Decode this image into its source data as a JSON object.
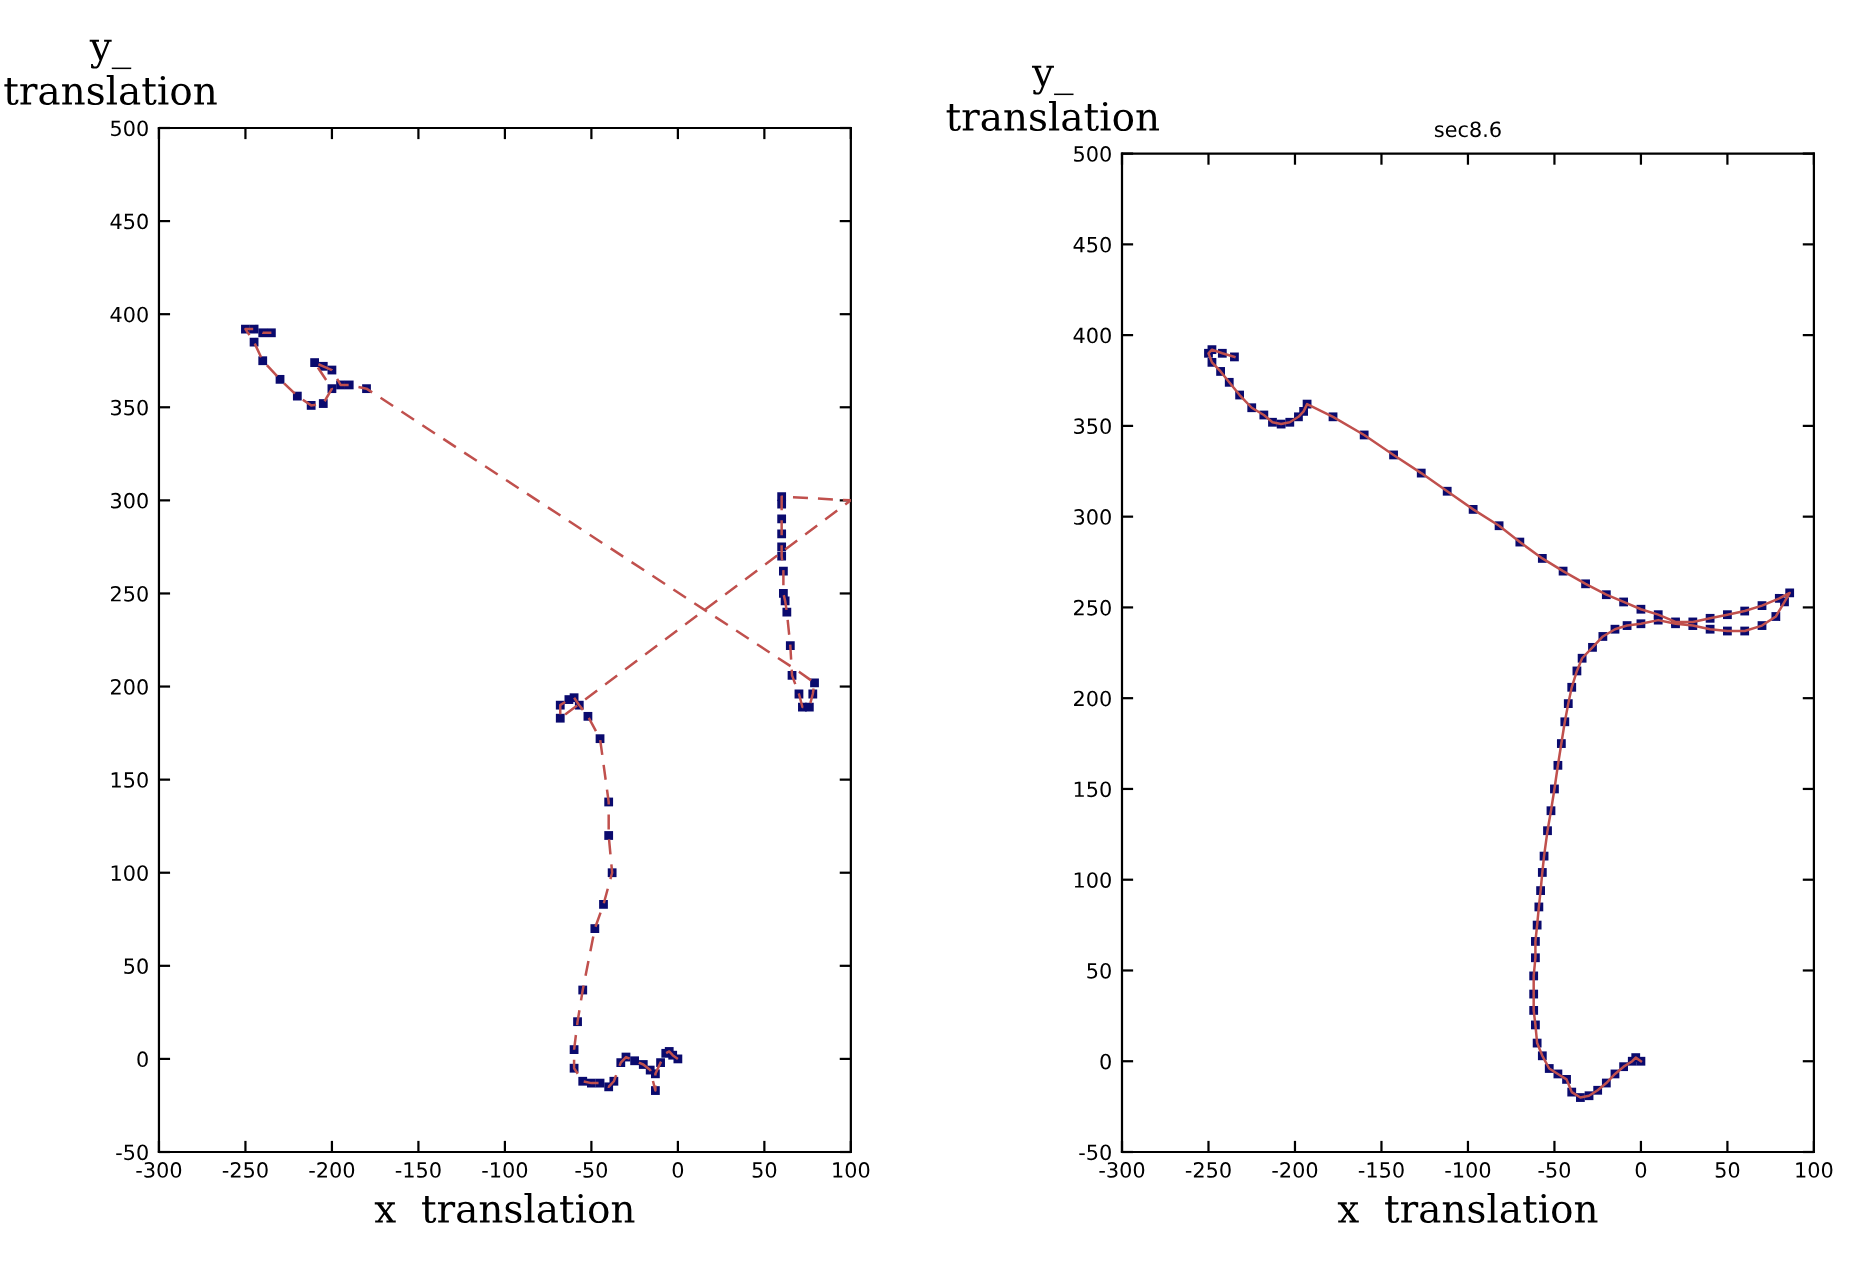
{
  "chart_data": [
    {
      "type": "line",
      "xlabel": "x  translation",
      "ylabel": "y_\ntranslation",
      "xlim": [
        -300,
        100
      ],
      "ylim": [
        -50,
        500
      ],
      "xticks": [
        -300,
        -250,
        -200,
        -150,
        -100,
        -50,
        0,
        50,
        100
      ],
      "yticks": [
        -50,
        0,
        50,
        100,
        150,
        200,
        250,
        300,
        350,
        400,
        450,
        500
      ],
      "grid": false,
      "x": [
        0,
        -3,
        -5,
        -7,
        -10,
        -13,
        -13,
        -16,
        -20,
        -25,
        -30,
        -33,
        -37,
        -40,
        -45,
        -50,
        -55,
        -60,
        -60,
        -58,
        -55,
        -48,
        -43,
        -38,
        -40,
        -40,
        -45,
        -52,
        -57,
        -60,
        -63,
        -68,
        -68,
        100,
        60,
        60,
        60,
        60,
        60,
        60,
        61,
        61,
        62,
        63,
        65,
        66,
        70,
        72,
        76,
        78,
        79,
        70,
        -180,
        -190,
        -195,
        -200,
        -205,
        -210,
        -200,
        -205,
        -212,
        -220,
        -230,
        -240,
        -245,
        -250,
        -245,
        -240,
        -235
      ],
      "series": [
        {
          "line_style": "dashed",
          "marker": "none",
          "color": "#c0504d",
          "values": [
            0,
            2,
            4,
            3,
            -2,
            -8,
            -17,
            -6,
            -3,
            -1,
            1,
            -2,
            -12,
            -15,
            -13,
            -13,
            -12,
            -5,
            5,
            20,
            37,
            70,
            83,
            100,
            120,
            138,
            172,
            184,
            190,
            194,
            193,
            190,
            183,
            300,
            302,
            298,
            290,
            282,
            275,
            270,
            262,
            250,
            246,
            240,
            222,
            206,
            196,
            189,
            189,
            196,
            202,
            208,
            360,
            362,
            362,
            370,
            372,
            374,
            360,
            352,
            351,
            356,
            365,
            375,
            385,
            392,
            392,
            390,
            390
          ]
        },
        {
          "type": "scatter",
          "marker": "square",
          "color": "#0a0a6e",
          "values": [
            0,
            2,
            4,
            3,
            -2,
            -8,
            -17,
            -6,
            -3,
            -1,
            1,
            -2,
            -12,
            -15,
            -13,
            -13,
            -12,
            -5,
            5,
            20,
            37,
            70,
            83,
            100,
            120,
            138,
            172,
            184,
            190,
            194,
            193,
            190,
            183,
            null,
            302,
            298,
            290,
            282,
            275,
            270,
            262,
            250,
            246,
            240,
            222,
            206,
            196,
            189,
            189,
            196,
            202,
            null,
            360,
            362,
            362,
            370,
            372,
            374,
            360,
            352,
            351,
            356,
            365,
            375,
            385,
            392,
            392,
            390,
            390
          ]
        }
      ]
    },
    {
      "type": "line",
      "title": "sec8.6",
      "xlabel": "x  translation",
      "ylabel": "y_\ntranslation",
      "xlim": [
        -300,
        100
      ],
      "ylim": [
        -50,
        500
      ],
      "xticks": [
        -300,
        -250,
        -200,
        -150,
        -100,
        -50,
        0,
        50,
        100
      ],
      "yticks": [
        -50,
        0,
        50,
        100,
        150,
        200,
        250,
        300,
        350,
        400,
        450,
        500
      ],
      "grid": false,
      "x": [
        0,
        -3,
        -5,
        -10,
        -15,
        -20,
        -25,
        -30,
        -35,
        -40,
        -43,
        -48,
        -53,
        -57,
        -60,
        -61,
        -62,
        -62,
        -62,
        -61,
        -61,
        -60,
        -59,
        -58,
        -57,
        -56,
        -54,
        -52,
        -50,
        -48,
        -46,
        -44,
        -42,
        -40,
        -37,
        -34,
        -28,
        -22,
        -15,
        -8,
        0,
        10,
        20,
        30,
        40,
        50,
        60,
        70,
        78,
        83,
        86,
        80,
        70,
        60,
        50,
        40,
        30,
        20,
        10,
        0,
        -10,
        -20,
        -32,
        -45,
        -57,
        -70,
        -82,
        -97,
        -112,
        -127,
        -143,
        -160,
        -178,
        -193,
        -195,
        -198,
        -203,
        -208,
        -213,
        -218,
        -225,
        -232,
        -238,
        -243,
        -248,
        -250,
        -248,
        -242,
        -235
      ],
      "series": [
        {
          "line_style": "solid",
          "marker": "none",
          "color": "#c0504d",
          "values": [
            0,
            2,
            0,
            -3,
            -7,
            -12,
            -16,
            -19,
            -20,
            -17,
            -10,
            -7,
            -4,
            3,
            10,
            20,
            28,
            37,
            47,
            57,
            66,
            75,
            85,
            94,
            104,
            113,
            127,
            138,
            150,
            163,
            175,
            187,
            197,
            206,
            215,
            222,
            228,
            234,
            238,
            240,
            241,
            243,
            241,
            240,
            238,
            237,
            237,
            240,
            245,
            253,
            258,
            255,
            251,
            248,
            246,
            244,
            242,
            242,
            246,
            249,
            253,
            257,
            263,
            270,
            277,
            286,
            295,
            304,
            314,
            324,
            334,
            345,
            355,
            362,
            358,
            355,
            352,
            351,
            352,
            356,
            360,
            367,
            374,
            380,
            385,
            390,
            392,
            390,
            388
          ]
        },
        {
          "type": "scatter",
          "marker": "square",
          "color": "#0a0a6e",
          "values": [
            0,
            2,
            0,
            -3,
            -7,
            -12,
            -16,
            -19,
            -20,
            -17,
            -10,
            -7,
            -4,
            3,
            10,
            20,
            28,
            37,
            47,
            57,
            66,
            75,
            85,
            94,
            104,
            113,
            127,
            138,
            150,
            163,
            175,
            187,
            197,
            206,
            215,
            222,
            228,
            234,
            238,
            240,
            241,
            243,
            241,
            240,
            238,
            237,
            237,
            240,
            245,
            253,
            258,
            255,
            251,
            248,
            246,
            244,
            242,
            242,
            246,
            249,
            253,
            257,
            263,
            270,
            277,
            286,
            295,
            304,
            314,
            324,
            334,
            345,
            355,
            362,
            358,
            355,
            352,
            351,
            352,
            356,
            360,
            367,
            374,
            380,
            385,
            390,
            392,
            390,
            388
          ]
        }
      ]
    }
  ]
}
